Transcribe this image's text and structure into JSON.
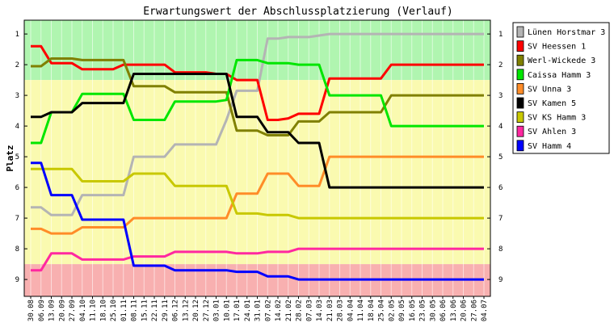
{
  "chart_data": {
    "type": "line",
    "title": "Erwartungswert der Abschlussplatzierung (Verlauf)",
    "ylabel": "Platz",
    "xlabel": "",
    "ylim": [
      0.55,
      9.55
    ],
    "y_inverted": true,
    "yticks": [
      "1",
      "2",
      "3",
      "4",
      "5",
      "6",
      "7",
      "8",
      "9"
    ],
    "x": [
      "30.08",
      "06.09",
      "13.09",
      "20.09",
      "27.09",
      "04.10",
      "11.10",
      "18.10",
      "25.10",
      "01.11",
      "08.11",
      "15.11",
      "22.11",
      "29.11",
      "06.12",
      "13.12",
      "20.12",
      "27.12",
      "03.01",
      "10.01",
      "17.01",
      "24.01",
      "31.01",
      "07.02",
      "14.02",
      "21.02",
      "28.02",
      "07.03",
      "14.03",
      "21.03",
      "28.03",
      "04.04",
      "11.04",
      "18.04",
      "25.04",
      "02.05",
      "09.05",
      "16.05",
      "23.05",
      "30.05",
      "06.06",
      "13.06",
      "20.06",
      "27.06",
      "04.07"
    ],
    "background_bands": [
      {
        "from": 0.55,
        "to": 2.5,
        "color": "#b0f5b0"
      },
      {
        "from": 2.5,
        "to": 8.5,
        "color": "#fafab0"
      },
      {
        "from": 8.5,
        "to": 9.55,
        "color": "#f8b0b0"
      }
    ],
    "legend_position": "right",
    "series": [
      {
        "name": "Lünen Horstmar 3",
        "color": "#b4b4b4",
        "values": [
          6.65,
          6.65,
          6.9,
          6.9,
          6.9,
          6.25,
          6.25,
          6.25,
          6.25,
          6.25,
          5.0,
          5.0,
          5.0,
          5.0,
          4.6,
          4.6,
          4.6,
          4.6,
          4.6,
          3.8,
          2.85,
          2.85,
          2.85,
          1.15,
          1.15,
          1.1,
          1.1,
          1.1,
          1.05,
          1.0,
          1.0,
          1.0,
          1.0,
          1.0,
          1.0,
          1.0,
          1.0,
          1.0,
          1.0,
          1.0,
          1.0,
          1.0,
          1.0,
          1.0,
          1.0
        ]
      },
      {
        "name": "SV Heessen 1",
        "color": "#ff0000",
        "values": [
          1.4,
          1.4,
          1.95,
          1.95,
          1.95,
          2.15,
          2.15,
          2.15,
          2.15,
          2.0,
          2.0,
          2.0,
          2.0,
          2.0,
          2.25,
          2.25,
          2.25,
          2.25,
          2.3,
          2.3,
          2.5,
          2.5,
          2.5,
          3.8,
          3.8,
          3.75,
          3.6,
          3.6,
          3.6,
          2.45,
          2.45,
          2.45,
          2.45,
          2.45,
          2.45,
          2.0,
          2.0,
          2.0,
          2.0,
          2.0,
          2.0,
          2.0,
          2.0,
          2.0,
          2.0
        ]
      },
      {
        "name": "Werl-Wickede 3",
        "color": "#808000",
        "values": [
          2.05,
          2.05,
          1.8,
          1.8,
          1.8,
          1.85,
          1.85,
          1.85,
          1.85,
          1.85,
          2.7,
          2.7,
          2.7,
          2.7,
          2.9,
          2.9,
          2.9,
          2.9,
          2.9,
          2.9,
          4.15,
          4.15,
          4.15,
          4.3,
          4.3,
          4.3,
          3.85,
          3.85,
          3.85,
          3.55,
          3.55,
          3.55,
          3.55,
          3.55,
          3.55,
          3.0,
          3.0,
          3.0,
          3.0,
          3.0,
          3.0,
          3.0,
          3.0,
          3.0,
          3.0
        ]
      },
      {
        "name": "Caissa Hamm 3",
        "color": "#00e600",
        "values": [
          4.55,
          4.55,
          3.55,
          3.55,
          3.55,
          2.95,
          2.95,
          2.95,
          2.95,
          2.95,
          3.8,
          3.8,
          3.8,
          3.8,
          3.2,
          3.2,
          3.2,
          3.2,
          3.2,
          3.15,
          1.85,
          1.85,
          1.85,
          1.95,
          1.95,
          1.95,
          2.0,
          2.0,
          2.0,
          3.0,
          3.0,
          3.0,
          3.0,
          3.0,
          3.0,
          4.0,
          4.0,
          4.0,
          4.0,
          4.0,
          4.0,
          4.0,
          4.0,
          4.0,
          4.0
        ]
      },
      {
        "name": "SV Unna 3",
        "color": "#ff8c28",
        "values": [
          7.35,
          7.35,
          7.5,
          7.5,
          7.5,
          7.3,
          7.3,
          7.3,
          7.3,
          7.3,
          7.0,
          7.0,
          7.0,
          7.0,
          7.0,
          7.0,
          7.0,
          7.0,
          7.0,
          7.0,
          6.2,
          6.2,
          6.2,
          5.55,
          5.55,
          5.55,
          5.95,
          5.95,
          5.95,
          5.0,
          5.0,
          5.0,
          5.0,
          5.0,
          5.0,
          5.0,
          5.0,
          5.0,
          5.0,
          5.0,
          5.0,
          5.0,
          5.0,
          5.0,
          5.0
        ]
      },
      {
        "name": "SV Kamen 5",
        "color": "#000000",
        "values": [
          3.7,
          3.7,
          3.55,
          3.55,
          3.55,
          3.25,
          3.25,
          3.25,
          3.25,
          3.25,
          2.3,
          2.3,
          2.3,
          2.3,
          2.3,
          2.3,
          2.3,
          2.3,
          2.3,
          2.3,
          3.7,
          3.7,
          3.7,
          4.2,
          4.2,
          4.2,
          4.55,
          4.55,
          4.55,
          6.0,
          6.0,
          6.0,
          6.0,
          6.0,
          6.0,
          6.0,
          6.0,
          6.0,
          6.0,
          6.0,
          6.0,
          6.0,
          6.0,
          6.0,
          6.0
        ]
      },
      {
        "name": "SV KS Hamm 3",
        "color": "#c8c800",
        "values": [
          5.4,
          5.4,
          5.4,
          5.4,
          5.4,
          5.8,
          5.8,
          5.8,
          5.8,
          5.8,
          5.55,
          5.55,
          5.55,
          5.55,
          5.95,
          5.95,
          5.95,
          5.95,
          5.95,
          5.95,
          6.85,
          6.85,
          6.85,
          6.9,
          6.9,
          6.9,
          7.0,
          7.0,
          7.0,
          7.0,
          7.0,
          7.0,
          7.0,
          7.0,
          7.0,
          7.0,
          7.0,
          7.0,
          7.0,
          7.0,
          7.0,
          7.0,
          7.0,
          7.0,
          7.0
        ]
      },
      {
        "name": "SV Ahlen 3",
        "color": "#ff28a0",
        "values": [
          8.7,
          8.7,
          8.15,
          8.15,
          8.15,
          8.35,
          8.35,
          8.35,
          8.35,
          8.35,
          8.25,
          8.25,
          8.25,
          8.25,
          8.1,
          8.1,
          8.1,
          8.1,
          8.1,
          8.1,
          8.15,
          8.15,
          8.15,
          8.1,
          8.1,
          8.1,
          8.0,
          8.0,
          8.0,
          8.0,
          8.0,
          8.0,
          8.0,
          8.0,
          8.0,
          8.0,
          8.0,
          8.0,
          8.0,
          8.0,
          8.0,
          8.0,
          8.0,
          8.0,
          8.0
        ]
      },
      {
        "name": "SV Hamm 4",
        "color": "#0000ff",
        "values": [
          5.2,
          5.2,
          6.25,
          6.25,
          6.25,
          7.05,
          7.05,
          7.05,
          7.05,
          7.05,
          8.55,
          8.55,
          8.55,
          8.55,
          8.7,
          8.7,
          8.7,
          8.7,
          8.7,
          8.7,
          8.75,
          8.75,
          8.75,
          8.9,
          8.9,
          8.9,
          9.0,
          9.0,
          9.0,
          9.0,
          9.0,
          9.0,
          9.0,
          9.0,
          9.0,
          9.0,
          9.0,
          9.0,
          9.0,
          9.0,
          9.0,
          9.0,
          9.0,
          9.0,
          9.0
        ]
      }
    ]
  }
}
